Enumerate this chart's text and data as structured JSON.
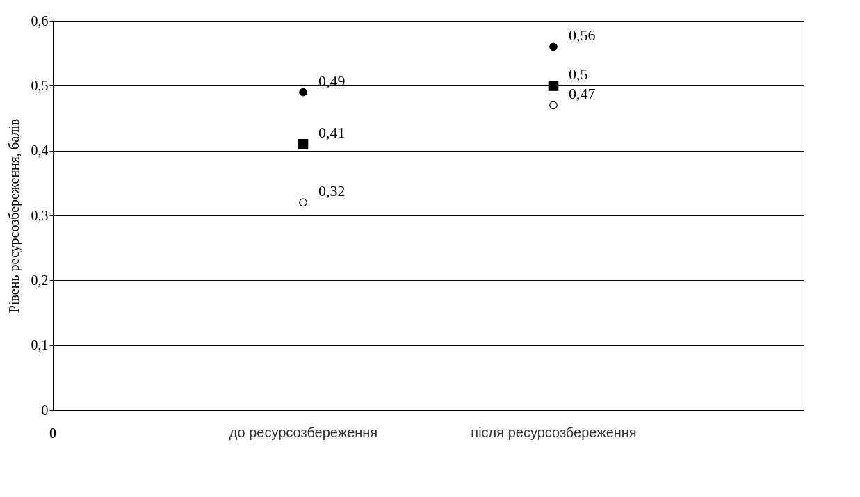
{
  "chart_data": {
    "type": "scatter",
    "ylabel": "Рівень ресурсозбереження, балів",
    "categories": [
      "до ресурсозбереження",
      "після ресурсозбереження"
    ],
    "series": [
      {
        "color": "#000000",
        "marker": "circle",
        "values": [
          0.49,
          0.56
        ],
        "value_labels": [
          "0,49",
          "0,56"
        ]
      },
      {
        "color": "#000000",
        "marker": "square",
        "values": [
          0.41,
          0.5
        ],
        "value_labels": [
          "0,41",
          "0,5"
        ]
      },
      {
        "color": "#ffffff",
        "marker": "circle",
        "values": [
          0.32,
          0.47
        ],
        "value_labels": [
          "0,32",
          "0,47"
        ]
      }
    ],
    "ylim": [
      0,
      0.6
    ],
    "yticks": [
      {
        "value": 0,
        "label": "0"
      },
      {
        "value": 0.1,
        "label": "0,1"
      },
      {
        "value": 0.2,
        "label": "0,2"
      },
      {
        "value": 0.3,
        "label": "0,3"
      },
      {
        "value": 0.4,
        "label": "0,4"
      },
      {
        "value": 0.5,
        "label": "0,5"
      },
      {
        "value": 0.6,
        "label": "0,6"
      }
    ],
    "grid": "y",
    "annotations": [
      "0"
    ]
  }
}
